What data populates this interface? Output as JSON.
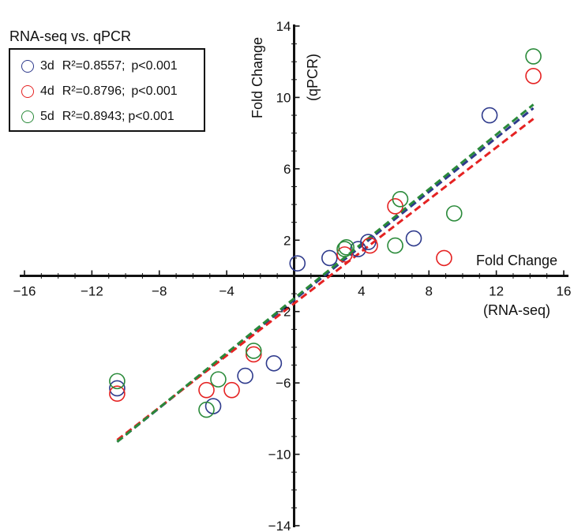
{
  "chart_data": {
    "type": "scatter",
    "title": "RNA-seq vs. qPCR",
    "xlabel_line1": "Fold Change",
    "xlabel_line2": "(RNA-seq)",
    "ylabel_line1": "Fold Change",
    "ylabel_line2": "(qPCR)",
    "xlim": [
      -16,
      16
    ],
    "ylim": [
      -14,
      14
    ],
    "x_ticks": [
      -16,
      -12,
      -8,
      -4,
      0,
      4,
      8,
      12,
      16
    ],
    "y_ticks": [
      -14,
      -10,
      -6,
      -2,
      2,
      6,
      10,
      14
    ],
    "x_tick_labels": [
      "−16",
      "−12",
      "−8",
      "−4",
      "4",
      "8",
      "12",
      "16"
    ],
    "y_tick_labels": [
      "14",
      "10",
      "6",
      "2",
      "−2",
      "−6",
      "−10",
      "−14"
    ],
    "legend_placement": "top-left",
    "series": [
      {
        "day": "3d",
        "r2_label": "R²=0.8557;",
        "p_label": "p<0.001",
        "color": "#2e3a8c",
        "points": [
          [
            -10.5,
            -6.3
          ],
          [
            -4.8,
            -7.3
          ],
          [
            -2.9,
            -5.6
          ],
          [
            -1.2,
            -4.9
          ],
          [
            0.2,
            0.7
          ],
          [
            2.1,
            1.0
          ],
          [
            3.8,
            1.5
          ],
          [
            4.4,
            1.9
          ],
          [
            7.1,
            2.1
          ],
          [
            11.6,
            9.0
          ]
        ],
        "fit": [
          [
            -10.5,
            -9.3
          ],
          [
            14.2,
            9.4
          ]
        ]
      },
      {
        "day": "4d",
        "r2_label": "R²=0.8796;",
        "p_label": "p<0.001",
        "color": "#e52222",
        "points": [
          [
            -10.5,
            -6.6
          ],
          [
            -5.2,
            -6.4
          ],
          [
            -3.7,
            -6.4
          ],
          [
            -2.4,
            -4.4
          ],
          [
            3.0,
            1.2
          ],
          [
            4.5,
            1.7
          ],
          [
            6.0,
            3.9
          ],
          [
            8.9,
            1.0
          ],
          [
            14.2,
            11.2
          ]
        ],
        "fit": [
          [
            -10.5,
            -9.2
          ],
          [
            14.2,
            8.8
          ]
        ]
      },
      {
        "day": "5d",
        "r2_label": "R²=0.8943;",
        "p_label": "p<0.001",
        "color": "#2a8a3a",
        "points": [
          [
            -10.5,
            -5.9
          ],
          [
            -5.2,
            -7.5
          ],
          [
            -4.5,
            -5.8
          ],
          [
            -2.4,
            -4.2
          ],
          [
            3.0,
            1.5
          ],
          [
            3.1,
            1.6
          ],
          [
            6.0,
            1.7
          ],
          [
            6.3,
            4.3
          ],
          [
            9.5,
            3.5
          ],
          [
            14.2,
            12.3
          ]
        ],
        "fit": [
          [
            -10.5,
            -9.3
          ],
          [
            14.2,
            9.6
          ]
        ]
      }
    ]
  }
}
